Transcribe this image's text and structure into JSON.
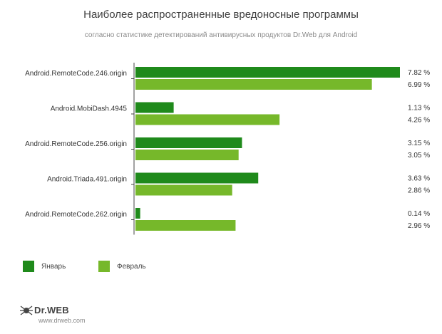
{
  "colors": {
    "january": "#1f8a1b",
    "february": "#76b82a",
    "axis": "#444444"
  },
  "logo": {
    "brand": "Dr.WEB",
    "url": "www.drweb.com"
  },
  "chart_data": {
    "type": "bar",
    "orientation": "horizontal",
    "title": "Наиболее распространенные вредоносные программы",
    "subtitle": "согласно статистике детектирований антивирусных продуктов Dr.Web для Android",
    "categories": [
      "Android.RemoteCode.246.origin",
      "Android.MobiDash.4945",
      "Android.RemoteCode.256.origin",
      "Android.Triada.491.origin",
      "Android.RemoteCode.262.origin"
    ],
    "series": [
      {
        "name": "Январь",
        "values": [
          7.82,
          1.13,
          3.15,
          3.63,
          0.14
        ],
        "labels": [
          "7.82 %",
          "1.13 %",
          "3.15 %",
          "3.63 %",
          "0.14 %"
        ]
      },
      {
        "name": "Февраль",
        "values": [
          6.99,
          4.26,
          3.05,
          2.86,
          2.96
        ],
        "labels": [
          "6.99 %",
          "4.26 %",
          "3.05 %",
          "2.86 %",
          "2.96 %"
        ]
      }
    ],
    "xlim": [
      0,
      7.82
    ],
    "grid": false,
    "legend": "bottom-left"
  }
}
